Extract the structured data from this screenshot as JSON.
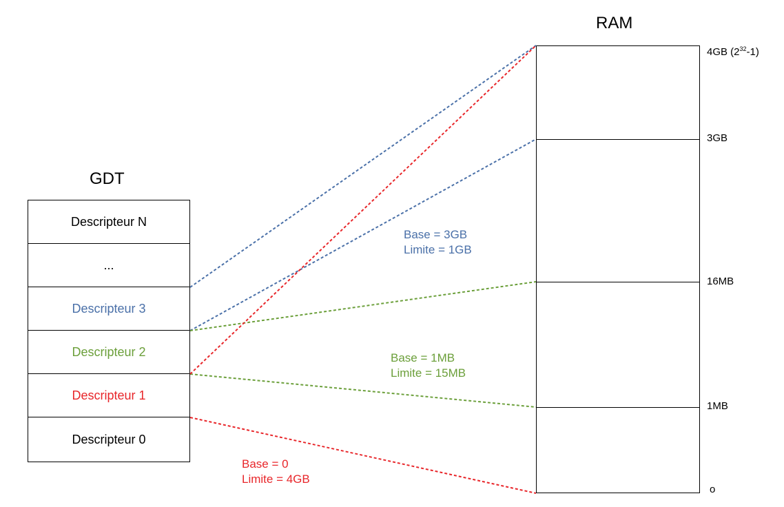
{
  "colors": {
    "blue": "#4a70a8",
    "green": "#6b9f3a",
    "red": "#e8262a",
    "black": "#000000"
  },
  "gdt": {
    "title": "GDT",
    "rows": [
      {
        "label": "Descripteur N",
        "color": "#000000"
      },
      {
        "label": "...",
        "color": "#000000"
      },
      {
        "label": "Descripteur 3",
        "color": "#4a70a8"
      },
      {
        "label": "Descripteur 2",
        "color": "#6b9f3a"
      },
      {
        "label": "Descripteur 1",
        "color": "#e8262a"
      },
      {
        "label": "Descripteur 0",
        "color": "#000000"
      }
    ]
  },
  "ram": {
    "title": "RAM",
    "labels": {
      "top_main": "4GB (2",
      "top_exp": "32",
      "top_tail": "-1)",
      "gb3": "3GB",
      "mb16": "16MB",
      "mb1": "1MB",
      "zero": "o"
    }
  },
  "segments": {
    "blue": {
      "base": "Base = 3GB",
      "limit": "Limite = 1GB"
    },
    "green": {
      "base": "Base = 1MB",
      "limit": "Limite = 15MB"
    },
    "red": {
      "base": "Base = 0",
      "limit": "Limite = 4GB"
    }
  }
}
